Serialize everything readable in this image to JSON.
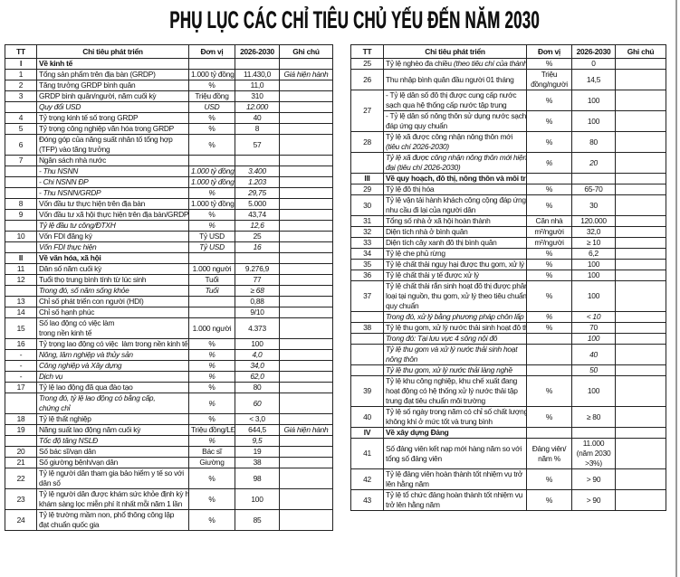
{
  "title": "PHỤ LỤC CÁC CHỈ TIÊU CHỦ YẾU ĐẾN NĂM 2030",
  "headers": [
    "TT",
    "Chỉ tiêu phát triển",
    "Đơn vị",
    "2026-2030",
    "Ghi chú"
  ],
  "left_rows": [
    {
      "tt": "I",
      "label": "Về kinh tế",
      "section": true
    },
    {
      "tt": "1",
      "label": "Tổng sản phẩm trên địa bàn (GRDP)",
      "unit": "1.000 tỷ đồng",
      "value": "11.430,0",
      "note": "Giá hiện hành"
    },
    {
      "tt": "2",
      "label": "Tăng trưởng GRDP bình quân",
      "unit": "%",
      "value": "11,0"
    },
    {
      "tt": "3",
      "label": "GRDP bình quân/người, năm cuối kỳ",
      "unit": "Triệu đồng",
      "value": "310"
    },
    {
      "tt": "",
      "label": "Quy đổi USD",
      "unit": "USD",
      "value": "12.000",
      "italic": true
    },
    {
      "tt": "4",
      "label": "Tỷ trọng kinh tế số trong GRDP",
      "unit": "%",
      "value": "40"
    },
    {
      "tt": "5",
      "label": "Tỷ trọng công nghiệp văn hóa trong GRDP",
      "unit": "%",
      "value": "8"
    },
    {
      "tt": "6",
      "label": "Đóng góp của năng suất nhân tố tổng hợp\n(TFP) vào tăng trưởng",
      "unit": "%",
      "value": "57"
    },
    {
      "tt": "7",
      "label": "Ngân sách nhà nước",
      "unit": "",
      "value": ""
    },
    {
      "tt": "",
      "label": "- Thu NSNN",
      "unit": "1.000 tỷ đồng",
      "value": "3.400",
      "italic": true
    },
    {
      "tt": "",
      "label": "- Chi NSNN ĐP",
      "unit": "1.000 tỷ đồng",
      "value": "1.203",
      "italic": true
    },
    {
      "tt": "",
      "label": "- Thu NSNN/GRDP",
      "unit": "%",
      "value": "29,75",
      "italic": true
    },
    {
      "tt": "8",
      "label": "Vốn đầu tư thực hiện trên địa bàn",
      "unit": "1.000 tỷ đồng",
      "value": "5.000"
    },
    {
      "tt": "9",
      "label": "Vốn đầu tư xã hội thực hiện trên địa bàn/GRDP",
      "unit": "%",
      "value": "43,74"
    },
    {
      "tt": "",
      "label": "Tỷ lệ đầu tư công/ĐTXH",
      "unit": "%",
      "value": "12,6",
      "italic": true
    },
    {
      "tt": "10",
      "label": "Vốn FDI đăng ký",
      "unit": "Tỷ USD",
      "value": "25"
    },
    {
      "tt": "",
      "label": "Vốn FDI thực hiện",
      "unit": "Tỷ USD",
      "value": "16",
      "italic": true
    },
    {
      "tt": "II",
      "label": "Về văn hóa, xã hội",
      "section": true
    },
    {
      "tt": "11",
      "label": "Dân số năm cuối kỳ",
      "unit": "1.000 người",
      "value": "9.276,9"
    },
    {
      "tt": "12",
      "label": "Tuổi thọ trung bình tính từ lúc sinh",
      "unit": "Tuổi",
      "value": "77"
    },
    {
      "tt": "",
      "label": "Trong đó, số năm sống khỏe",
      "unit": "Tuổi",
      "value": "≥ 68",
      "italic": true
    },
    {
      "tt": "13",
      "label": "Chỉ số phát triển con người (HDI)",
      "unit": "",
      "value": "0,88"
    },
    {
      "tt": "14",
      "label": "Chỉ số hạnh phúc",
      "unit": "",
      "value": "9/10"
    },
    {
      "tt": "15",
      "label": "Số lao động có việc làm\ntrong nền kinh tế",
      "unit": "1.000 người",
      "value": "4.373"
    },
    {
      "tt": "16",
      "label": "Tỷ trọng lao động có việc  làm trong nền kinh tế",
      "unit": "%",
      "value": "100"
    },
    {
      "tt": "-",
      "label": "Nông, lâm nghiệp và thủy sản",
      "unit": "%",
      "value": "4,0",
      "italic": true
    },
    {
      "tt": "-",
      "label": "Công nghiệp và Xây dựng",
      "unit": "%",
      "value": "34,0",
      "italic": true
    },
    {
      "tt": "-",
      "label": "Dịch vụ",
      "unit": "%",
      "value": "62,0",
      "italic": true
    },
    {
      "tt": "17",
      "label": "Tỷ lệ lao động đã qua đào tạo",
      "unit": "%",
      "value": "80"
    },
    {
      "tt": "",
      "label": "Trong đó, tỷ lệ lao động có bằng cấp,\nchứng chỉ",
      "unit": "%",
      "value": "60",
      "italic": true
    },
    {
      "tt": "18",
      "label": "Tỷ lệ thất nghiệp",
      "unit": "%",
      "value": "< 3,0"
    },
    {
      "tt": "19",
      "label": "Năng suất lao động năm cuối kỳ",
      "unit": "Triệu đồng/LĐ",
      "value": "644,5",
      "note": "Giá hiện hành"
    },
    {
      "tt": "",
      "label": "Tốc độ tăng NSLĐ",
      "unit": "%",
      "value": "9,5",
      "italic": true
    },
    {
      "tt": "20",
      "label": "Số bác sĩ/vạn dân",
      "unit": "Bác sĩ",
      "value": "19"
    },
    {
      "tt": "21",
      "label": "Số giường bệnh/vạn dân",
      "unit": "Giường",
      "value": "38"
    },
    {
      "tt": "22",
      "label": "Tỷ lệ người dân tham gia bảo hiểm y tế so với\ndân số",
      "unit": "%",
      "value": "98"
    },
    {
      "tt": "23",
      "label": "Tỷ lệ người dân được khám sức khỏe định kỳ hoặc\nkhám sàng lọc miễn phí ít nhất mỗi năm 1 lần",
      "unit": "%",
      "value": "100"
    },
    {
      "tt": "24",
      "label": "Tỷ lệ trường mầm non, phổ thông công lập\nđạt chuẩn quốc gia",
      "unit": "%",
      "value": "85"
    }
  ],
  "right_rows": [
    {
      "tt": "25",
      "label": "Tỷ lệ nghèo đa chiều ",
      "label_italic": "(theo tiêu chí của thành phố)",
      "unit": "%",
      "value": "0"
    },
    {
      "tt": "26",
      "label": "Thu nhập bình quân đầu người 01 tháng",
      "unit": "Triệu\nđồng/người",
      "value": "14,5"
    },
    {
      "tt": "27",
      "rowspan": 2,
      "label": "- Tỷ lệ dân số đô thị được cung cấp nước\nsạch qua hệ thống cấp nước tập trung",
      "unit": "%",
      "value": "100"
    },
    {
      "tt": null,
      "label": "- Tỷ lệ dân số nông thôn sử dụng nước sạch\nđáp ứng quy chuẩn",
      "unit": "%",
      "value": "100"
    },
    {
      "tt": "28",
      "label": "Tỷ lệ xã được công nhận nông thôn mới\n",
      "label_italic": "(tiêu chí 2026-2030)",
      "unit": "%",
      "value": "80"
    },
    {
      "tt": "",
      "label": "Tỷ lệ xã được công nhận nông thôn mới hiện\nđại (tiêu chí 2026-2030)",
      "unit": "%",
      "value": "20",
      "italic": true
    },
    {
      "tt": "III",
      "label": "Về quy hoạch, đô thị, nông thôn và môi trường",
      "section": true
    },
    {
      "tt": "29",
      "label": "Tỷ lệ đô thị hóa",
      "unit": "%",
      "value": "65-70"
    },
    {
      "tt": "30",
      "label": "Tỷ lệ vận tải hành khách công cộng đáp ứng\nnhu cầu đi lại của người dân",
      "unit": "%",
      "value": "30"
    },
    {
      "tt": "31",
      "label": "Tổng số nhà ở xã hội hoàn thành",
      "unit": "Căn nhà",
      "value": "120.000"
    },
    {
      "tt": "32",
      "label": "Diện tích nhà ở bình quân",
      "unit": "m²/người",
      "value": "32,0"
    },
    {
      "tt": "33",
      "label": "Diện tích cây xanh đô thị bình quân",
      "unit": "m²/người",
      "value": "≥ 10"
    },
    {
      "tt": "34",
      "label": "Tỷ lệ che phủ rừng",
      "unit": "%",
      "value": "6,2"
    },
    {
      "tt": "35",
      "label": "Tỷ lệ chất thải nguy hại được thu gom, xử lý",
      "unit": "%",
      "value": "100"
    },
    {
      "tt": "36",
      "label": "Tỷ lệ chất thải y tế được xử lý",
      "unit": "%",
      "value": "100"
    },
    {
      "tt": "37",
      "label": "Tỷ lệ chất thải rắn sinh hoạt đô thị được phân\nloại tại nguồn, thu gom, xử lý theo tiêu chuẩn,\nquy chuẩn",
      "unit": "%",
      "value": "100"
    },
    {
      "tt": "",
      "label": "Trong đó, xử lý bằng phương pháp chôn lấp",
      "unit": "%",
      "value": "< 10",
      "italic": true
    },
    {
      "tt": "38",
      "label": "Tỷ lệ thu gom, xử lý nước thải sinh hoạt đô thị",
      "unit": "%",
      "value": "70"
    },
    {
      "tt": "",
      "label": "Trong đó: Tại lưu vực 4 sông nội đô",
      "unit": "",
      "value": "100",
      "italic": true
    },
    {
      "tt": "",
      "label": "Tỷ lệ thu gom và xử lý nước thải sinh hoạt\nnông thôn",
      "unit": "",
      "value": "40",
      "italic": true
    },
    {
      "tt": "",
      "label": "Tỷ lệ thu gom, xử lý nước thải làng nghề",
      "unit": "",
      "value": "50",
      "italic": true
    },
    {
      "tt": "39",
      "label": "Tỷ lệ khu công nghiệp, khu chế xuất đang\nhoạt động có hệ thống xử lý nước thải tập\ntrung đạt tiêu chuẩn môi trường",
      "unit": "%",
      "value": "100"
    },
    {
      "tt": "40",
      "label": "Tỷ lệ số ngày trong năm có chỉ số chất lượng\nkhông khí ở mức tốt và trung bình",
      "unit": "%",
      "value": "≥ 80"
    },
    {
      "tt": "IV",
      "label": "Về xây dựng Đảng",
      "section": true
    },
    {
      "tt": "41",
      "label": "Số đảng viên kết nạp mới hàng năm so với\ntổng số đảng viên",
      "unit": "Đảng viên/\nnăm %",
      "value": "11.000\n(năm 2030\n>3%)"
    },
    {
      "tt": "42",
      "label": "Tỷ lệ đảng viên hoàn thành tốt nhiệm vụ trở\nlên hằng năm",
      "unit": "%",
      "value": "> 90"
    },
    {
      "tt": "43",
      "label": "Tỷ lệ tổ chức đảng hoàn thành tốt nhiệm vụ\ntrở lên hằng năm",
      "unit": "%",
      "value": "> 90"
    }
  ]
}
